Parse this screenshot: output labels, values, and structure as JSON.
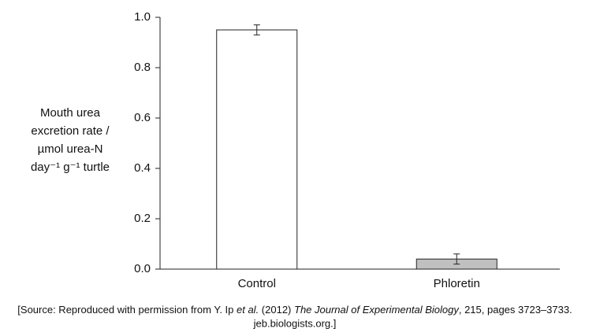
{
  "chart_data": {
    "type": "bar",
    "ylabel": [
      "Mouth urea",
      "excretion rate /",
      "µmol urea-N",
      "day⁻¹ g⁻¹ turtle"
    ],
    "categories": [
      "Control",
      "Phloretin"
    ],
    "values": [
      0.95,
      0.04
    ],
    "errors": [
      0.02,
      0.02
    ],
    "colors": [
      "#ffffff",
      "#c0c0c0"
    ],
    "ylim": [
      0,
      1
    ],
    "yticks": [
      {
        "value": 0,
        "label": "0.0"
      },
      0.2,
      0.4,
      0.6,
      0.8,
      {
        "value": 1,
        "label": "1.0"
      }
    ],
    "grid": false
  },
  "source": {
    "line1": [
      "[Source: Reproduced with permission from Y. Ip ",
      "et al.",
      " (2012) ",
      "The Journal of Experimental Biology",
      ", 215, pages 3723–3733."
    ],
    "line2": "jeb.biologists.org.]"
  }
}
